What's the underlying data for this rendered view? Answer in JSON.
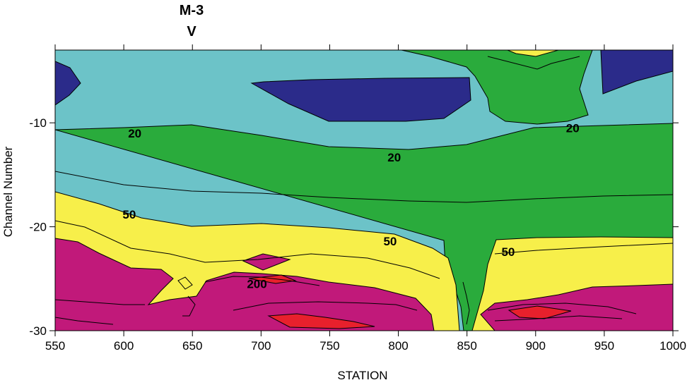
{
  "chart_data": {
    "type": "contour",
    "title": "M-3",
    "subtitle": "V",
    "xlabel": "STATION",
    "ylabel": "Channel Number",
    "xlim": [
      550,
      1000
    ],
    "ylim": [
      -30,
      -3
    ],
    "x_ticks": [
      "550",
      "600",
      "650",
      "700",
      "750",
      "800",
      "850",
      "900",
      "950",
      "1000"
    ],
    "y_ticks": [
      "-10",
      "-20",
      "-30"
    ],
    "grid": false,
    "colors": {
      "below_10": "#2b2b8a",
      "band_10_20": "#6cc3c8",
      "band_20_50": "#2aab3c",
      "band_50_100": "#f7ef4a",
      "band_100_200": "#c1197a",
      "above_200": "#e8202c"
    },
    "contour_levels": [
      10,
      20,
      50,
      100,
      200
    ],
    "contour_labels": [
      {
        "text": "20",
        "x": 608,
        "y": -11
      },
      {
        "text": "20",
        "x": 797,
        "y": -13.3
      },
      {
        "text": "20",
        "x": 927,
        "y": -10.5
      },
      {
        "text": "50",
        "x": 604,
        "y": -18.8
      },
      {
        "text": "50",
        "x": 794,
        "y": -21.4
      },
      {
        "text": "50",
        "x": 880,
        "y": -22.4
      },
      {
        "text": "200",
        "x": 697,
        "y": -25.5
      }
    ]
  }
}
